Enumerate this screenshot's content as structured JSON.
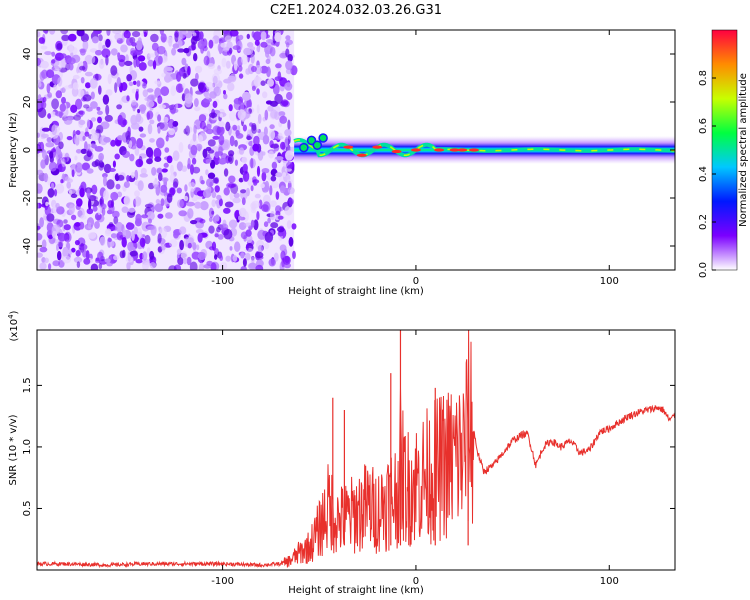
{
  "title": "C2E1.2024.032.03.26.G31",
  "colors": {
    "snr_line": "#e8302c",
    "colorbar": [
      "#ffffff",
      "#7b00ff",
      "#0018ff",
      "#00c8ff",
      "#00ff40",
      "#c8ff00",
      "#ff8c00",
      "#ff0040"
    ]
  },
  "chart_data": [
    {
      "type": "heatmap",
      "xlabel": "Height of straight line (km)",
      "ylabel": "Frequency (Hz)",
      "xlim": [
        -196,
        134
      ],
      "ylim": [
        -50,
        50
      ],
      "xticks": [
        -100,
        0,
        100
      ],
      "xtick_labels": [
        "-100",
        "0",
        "100"
      ],
      "yticks": [
        -40,
        -20,
        0,
        20,
        40
      ],
      "ytick_labels": [
        "-40",
        "-20",
        "0",
        "20",
        "40"
      ],
      "grid": false,
      "noise_region_x": [
        -196,
        -63
      ],
      "signal_region_x": [
        -63,
        134
      ],
      "signal_center_hz": 0,
      "colorbar": {
        "label": "Normalized spectral amplitude",
        "range": [
          0,
          1
        ],
        "ticks": [
          0,
          0.2,
          0.4,
          0.6,
          0.8
        ],
        "tick_labels": [
          "0.0",
          "0.2",
          "0.4",
          "0.6",
          "0.8"
        ]
      }
    },
    {
      "type": "line",
      "xlabel": "Height of straight line (km)",
      "ylabel": "SNR (10 * v/v)",
      "scale_label": "(x10^4)",
      "scale_base": "(x10",
      "scale_exp": "4",
      "scale_close": ")",
      "xlim": [
        -196,
        134
      ],
      "ylim": [
        0,
        1.95
      ],
      "xticks": [
        -100,
        0,
        100
      ],
      "xtick_labels": [
        "-100",
        "0",
        "100"
      ],
      "yticks": [
        0.5,
        1.0,
        1.5
      ],
      "ytick_labels": [
        "0.5",
        "1.0",
        "1.5"
      ],
      "grid": false,
      "series": [
        {
          "x": [
            -196,
            -180,
            -160,
            -140,
            -120,
            -100,
            -80,
            -70,
            -65,
            -60,
            -55,
            -50,
            -45,
            -40,
            -35,
            -30,
            -25,
            -20,
            -15,
            -10,
            -8,
            -5,
            0,
            5,
            10,
            15,
            20,
            25,
            28,
            32,
            35,
            40,
            45,
            50,
            55,
            58,
            62,
            66,
            70,
            75,
            80,
            85,
            90,
            95,
            100,
            105,
            110,
            115,
            120,
            125,
            128,
            131,
            134
          ],
          "y": [
            0.05,
            0.05,
            0.04,
            0.05,
            0.05,
            0.05,
            0.04,
            0.05,
            0.08,
            0.15,
            0.2,
            0.35,
            0.55,
            0.42,
            0.45,
            0.5,
            0.55,
            0.5,
            0.6,
            0.65,
            0.9,
            0.7,
            0.75,
            0.8,
            0.85,
            0.9,
            0.95,
            1.0,
            1.3,
            0.95,
            0.8,
            0.85,
            0.95,
            1.05,
            1.1,
            1.1,
            0.85,
            1.0,
            1.05,
            1.0,
            1.05,
            0.95,
            0.98,
            1.12,
            1.15,
            1.2,
            1.25,
            1.28,
            1.3,
            1.32,
            1.3,
            1.22,
            1.25
          ]
        }
      ],
      "peaks": [
        {
          "x": -43,
          "y": 1.4
        },
        {
          "x": -37,
          "y": 1.3
        },
        {
          "x": -13,
          "y": 1.6
        },
        {
          "x": -8,
          "y": 1.95
        },
        {
          "x": 10,
          "y": 1.48
        },
        {
          "x": 27,
          "y": 1.35
        }
      ]
    }
  ]
}
